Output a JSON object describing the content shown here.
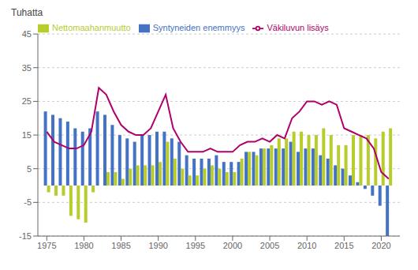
{
  "chart_data": {
    "type": "bar",
    "ylabel": "Tuhatta",
    "x": [
      1975,
      1976,
      1977,
      1978,
      1979,
      1980,
      1981,
      1982,
      1983,
      1984,
      1985,
      1986,
      1987,
      1988,
      1989,
      1990,
      1991,
      1992,
      1993,
      1994,
      1995,
      1996,
      1997,
      1998,
      1999,
      2000,
      2001,
      2002,
      2003,
      2004,
      2005,
      2006,
      2007,
      2008,
      2009,
      2010,
      2011,
      2012,
      2013,
      2014,
      2015,
      2016,
      2017,
      2018,
      2019,
      2020,
      2021
    ],
    "series": [
      {
        "name": "Syntyneiden enemmyys",
        "type": "bar",
        "color": "#4472c4",
        "values": [
          22,
          21,
          20,
          19,
          17,
          16,
          17,
          22,
          21,
          18,
          15,
          14,
          13,
          15,
          15,
          16,
          16,
          14,
          13,
          9,
          8,
          8,
          8,
          9,
          7,
          7,
          7,
          10,
          10,
          11,
          11,
          11,
          11,
          13,
          10,
          11,
          11,
          9,
          8,
          6,
          5,
          3,
          1,
          -1,
          -3,
          -6,
          -15
        ]
      },
      {
        "name": "Nettomaahanmuutto",
        "type": "bar",
        "color": "#b8cc2c",
        "values": [
          -2,
          -3,
          -3,
          -9,
          -10,
          -11,
          -2,
          0,
          4,
          4,
          2,
          5,
          6,
          6,
          6,
          7,
          13,
          8,
          5,
          3,
          3,
          5,
          6,
          5,
          4,
          4,
          8,
          10,
          9,
          11,
          12,
          14,
          14,
          16,
          16,
          15,
          15,
          17,
          15,
          12,
          12,
          15,
          15,
          15,
          14,
          16,
          17
        ]
      },
      {
        "name": "Väkiluvun lisäys",
        "type": "line",
        "color": "#b0006a",
        "values": [
          16,
          13,
          12,
          11,
          11,
          12,
          16,
          29,
          27,
          22,
          18,
          16,
          15,
          15,
          17,
          22,
          27,
          17,
          13,
          10,
          10,
          10,
          11,
          10,
          10,
          10,
          12,
          13,
          13,
          14,
          13,
          15,
          14,
          20,
          22,
          25,
          25,
          24,
          25,
          24,
          17,
          16,
          15,
          14,
          11,
          4,
          2
        ]
      }
    ],
    "xlim": [
      1973.8,
      2022.5
    ],
    "xticks": [
      1975,
      1980,
      1985,
      1990,
      1995,
      2000,
      2005,
      2010,
      2015,
      2020
    ],
    "ylim": [
      -15,
      45
    ],
    "yticks": [
      -15,
      -5,
      5,
      15,
      25,
      35,
      45
    ],
    "grid": true,
    "legend": "upper left"
  }
}
